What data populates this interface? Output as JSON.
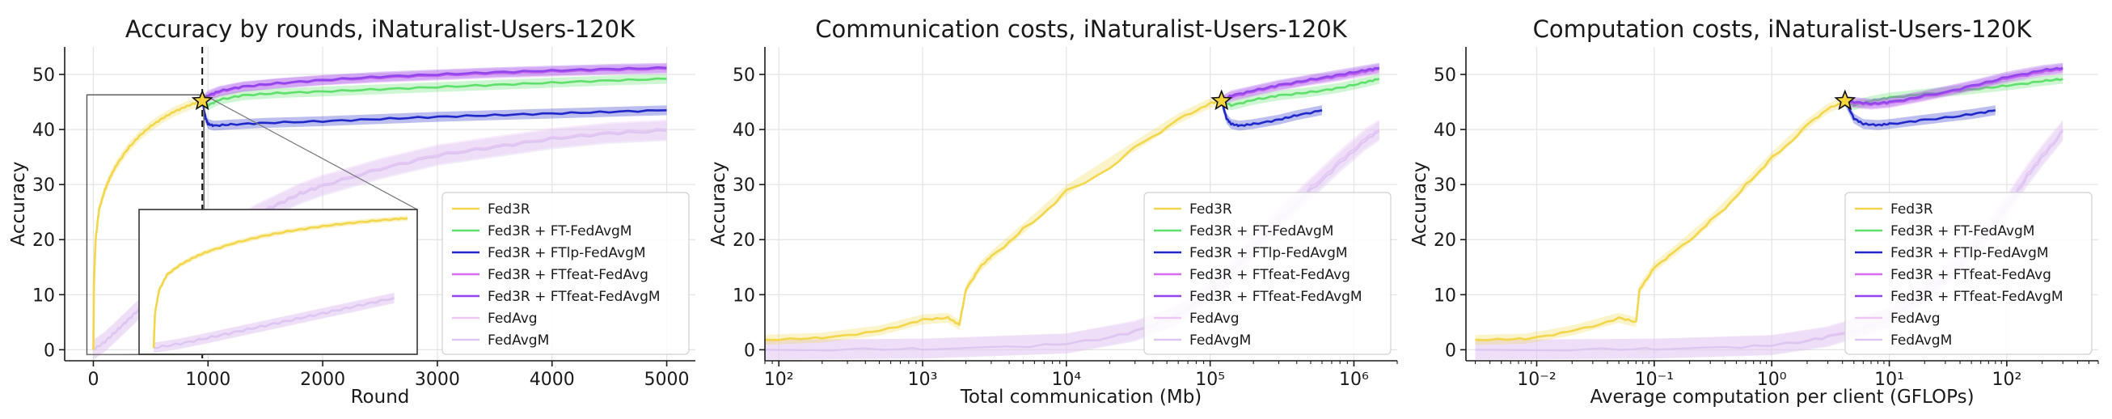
{
  "colors": {
    "Fed3R": "#f2d64b",
    "Fed3R + FT-FedAvgM": "#5ee06a",
    "Fed3R + FTlp-FedAvgM": "#1f29c9",
    "Fed3R + FTfeat-FedAvg": "#d66cf0",
    "Fed3R + FTfeat-FedAvgM": "#9146ec",
    "FedAvg": "#efc7f7",
    "FedAvgM": "#dbc6f2",
    "star": "#f5d43c"
  },
  "chart_data": [
    {
      "type": "line",
      "title": "Accuracy by rounds, iNaturalist-Users-120K",
      "xlabel": "Round",
      "ylabel": "Accuracy",
      "xscale": "linear",
      "xlim": [
        -250,
        5250
      ],
      "ylim": [
        -2,
        55
      ],
      "xticks": [
        0,
        1000,
        2000,
        3000,
        4000,
        5000
      ],
      "xtick_labels": [
        "0",
        "1000",
        "2000",
        "3000",
        "4000",
        "5000"
      ],
      "yticks": [
        0,
        10,
        20,
        30,
        40,
        50
      ],
      "ytick_labels": [
        "0",
        "10",
        "20",
        "30",
        "40",
        "50"
      ],
      "grid": true,
      "legend_position": "lower right",
      "vline_x": 950,
      "star": {
        "x": 950,
        "y": 45.2
      },
      "inset": {
        "xlim": [
          0,
          950
        ],
        "ylim": [
          0,
          46
        ]
      },
      "series": [
        {
          "name": "Fed3R",
          "x": [
            0,
            5,
            20,
            50,
            100,
            150,
            200,
            300,
            400,
            500,
            600,
            700,
            800,
            900,
            950
          ],
          "y": [
            0,
            12,
            20,
            25.5,
            29,
            31.5,
            33.5,
            36.5,
            38.8,
            40.6,
            42,
            43.2,
            44.1,
            44.9,
            45.2
          ]
        },
        {
          "name": "Fed3R + FT-FedAvgM",
          "x": [
            950,
            1000,
            1100,
            1300,
            1600,
            2000,
            2500,
            3000,
            3500,
            4000,
            4500,
            5000
          ],
          "y": [
            45.2,
            44.4,
            45.4,
            46.2,
            46.6,
            46.9,
            47.3,
            47.7,
            48.1,
            48.5,
            48.9,
            49.2
          ]
        },
        {
          "name": "Fed3R + FTlp-FedAvgM",
          "x": [
            950,
            980,
            1000,
            1050,
            1200,
            1500,
            2000,
            2500,
            3000,
            3500,
            4000,
            4500,
            5000
          ],
          "y": [
            45.2,
            42,
            41,
            40.7,
            40.9,
            41.2,
            41.5,
            41.9,
            42.3,
            42.6,
            42.9,
            43.2,
            43.5
          ]
        },
        {
          "name": "Fed3R + FTfeat-FedAvg",
          "x": [
            950,
            1000,
            1100,
            1300,
            1600,
            2000,
            2500,
            3000,
            3500,
            4000,
            4500,
            5000
          ],
          "y": [
            45.2,
            45.9,
            46.8,
            47.7,
            48.3,
            48.9,
            49.4,
            49.8,
            50.2,
            50.5,
            50.8,
            51
          ]
        },
        {
          "name": "Fed3R + FTfeat-FedAvgM",
          "x": [
            950,
            1000,
            1100,
            1300,
            1600,
            2000,
            2500,
            3000,
            3500,
            4000,
            4500,
            5000
          ],
          "y": [
            45.2,
            46.2,
            47,
            47.8,
            48.4,
            49,
            49.6,
            50,
            50.4,
            50.7,
            51,
            51.2
          ]
        },
        {
          "name": "FedAvg",
          "x": [
            0,
            100,
            200,
            300,
            400,
            500,
            600,
            700,
            800,
            900,
            1000,
            1200,
            1400,
            1600,
            1800,
            2000,
            2500,
            3000,
            3500,
            4000,
            4500,
            5000
          ],
          "y": [
            0,
            1.5,
            3.5,
            5.5,
            7.5,
            9.5,
            11.5,
            13.5,
            15.5,
            17.5,
            19.5,
            22,
            24.5,
            26.5,
            28.5,
            30,
            33,
            35.5,
            37,
            38.5,
            39.5,
            40
          ]
        },
        {
          "name": "FedAvgM",
          "x": [
            0,
            100,
            200,
            300,
            400,
            500,
            600,
            700,
            800,
            900,
            1000,
            1200,
            1400,
            1600,
            1800,
            2000,
            2500,
            3000,
            3500,
            4000,
            4500,
            5000
          ],
          "y": [
            0,
            1.4,
            3.3,
            5.3,
            7.3,
            9.3,
            11.3,
            13.3,
            15.3,
            17.3,
            19.3,
            21.8,
            24.2,
            26.2,
            28.2,
            29.7,
            32.7,
            35.2,
            36.7,
            38.2,
            39.2,
            39.7
          ]
        }
      ]
    },
    {
      "type": "line",
      "title": "Communication costs, iNaturalist-Users-120K",
      "xlabel": "Total communication (Mb)",
      "ylabel": "Accuracy",
      "xscale": "log",
      "xlim": [
        80,
        2000000
      ],
      "ylim": [
        -2,
        55
      ],
      "xticks": [
        100,
        1000,
        10000,
        100000,
        1000000
      ],
      "xtick_labels": [
        "10²",
        "10³",
        "10⁴",
        "10⁵",
        "10⁶"
      ],
      "yticks": [
        0,
        10,
        20,
        30,
        40,
        50
      ],
      "ytick_labels": [
        "0",
        "10",
        "20",
        "30",
        "40",
        "50"
      ],
      "grid": true,
      "legend_position": "lower right",
      "star": {
        "x": 120000,
        "y": 45.2
      },
      "series": [
        {
          "name": "Fed3R",
          "x": [
            80,
            200,
            500,
            1000,
            1500,
            1800,
            2000,
            2500,
            3000,
            5000,
            10000,
            30000,
            60000,
            100000,
            120000
          ],
          "y": [
            1.8,
            2.2,
            3.5,
            5.5,
            5.8,
            4.5,
            11,
            15,
            17,
            22,
            29,
            37,
            42,
            44.8,
            45.2
          ]
        },
        {
          "name": "Fed3R + FT-FedAvgM",
          "x": [
            120000,
            140000,
            200000,
            300000,
            500000,
            800000,
            1200000,
            1500000
          ],
          "y": [
            45.2,
            44.4,
            45.4,
            46.2,
            46.8,
            47.6,
            48.6,
            49.2
          ]
        },
        {
          "name": "Fed3R + FTlp-FedAvgM",
          "x": [
            120000,
            130000,
            140000,
            160000,
            200000,
            300000,
            400000,
            600000
          ],
          "y": [
            45.2,
            42,
            41,
            40.7,
            41,
            41.8,
            42.6,
            43.5
          ]
        },
        {
          "name": "Fed3R + FTfeat-FedAvg",
          "x": [
            120000,
            140000,
            200000,
            300000,
            500000,
            800000,
            1200000,
            1500000
          ],
          "y": [
            45.2,
            45.9,
            46.9,
            47.9,
            48.9,
            49.7,
            50.5,
            51
          ]
        },
        {
          "name": "Fed3R + FTfeat-FedAvgM",
          "x": [
            120000,
            140000,
            200000,
            300000,
            500000,
            800000,
            1200000,
            1500000
          ],
          "y": [
            45.2,
            46.2,
            47.1,
            48.1,
            49.1,
            50,
            50.8,
            51.2
          ]
        },
        {
          "name": "FedAvg",
          "x": [
            80,
            1000,
            10000,
            30000,
            60000,
            100000,
            150000,
            200000,
            300000,
            500000,
            800000,
            1200000,
            1500000
          ],
          "y": [
            0,
            0.2,
            1.2,
            3.5,
            6.5,
            11,
            15,
            19,
            24,
            29.5,
            34.5,
            38.5,
            40
          ]
        },
        {
          "name": "FedAvgM",
          "x": [
            80,
            1000,
            10000,
            30000,
            60000,
            100000,
            150000,
            200000,
            300000,
            500000,
            800000,
            1200000,
            1500000
          ],
          "y": [
            0,
            0.2,
            1.1,
            3.3,
            6.2,
            10.5,
            14.5,
            18.5,
            23.5,
            29,
            34,
            38,
            39.7
          ]
        }
      ]
    },
    {
      "type": "line",
      "title": "Computation costs, iNaturalist-Users-120K",
      "xlabel": "Average computation per client (GFLOPs)",
      "ylabel": "Accuracy",
      "xscale": "log",
      "xlim": [
        0.0025,
        600
      ],
      "ylim": [
        -2,
        55
      ],
      "xticks": [
        0.01,
        0.1,
        1,
        10,
        100
      ],
      "xtick_labels": [
        "10⁻²",
        "10⁻¹",
        "10⁰",
        "10¹",
        "10²"
      ],
      "yticks": [
        0,
        10,
        20,
        30,
        40,
        50
      ],
      "ytick_labels": [
        "0",
        "10",
        "20",
        "30",
        "40",
        "50"
      ],
      "grid": true,
      "legend_position": "lower right",
      "star": {
        "x": 4.2,
        "y": 45.2
      },
      "series": [
        {
          "name": "Fed3R",
          "x": [
            0.003,
            0.008,
            0.02,
            0.05,
            0.07,
            0.075,
            0.1,
            0.15,
            0.3,
            0.6,
            1,
            2,
            3,
            4.2
          ],
          "y": [
            1.8,
            2,
            3.5,
            5.8,
            5,
            11,
            15,
            18,
            23.5,
            30,
            35,
            41,
            43.8,
            45.2
          ]
        },
        {
          "name": "Fed3R + FT-FedAvgM",
          "x": [
            4.2,
            5,
            7,
            10,
            20,
            50,
            100,
            200,
            300
          ],
          "y": [
            45.2,
            44.4,
            45.2,
            45.8,
            46.5,
            47.3,
            48,
            48.8,
            49.2
          ]
        },
        {
          "name": "Fed3R + FTlp-FedAvgM",
          "x": [
            4.2,
            5,
            6,
            8,
            10,
            20,
            50,
            80
          ],
          "y": [
            45.2,
            42,
            41,
            40.8,
            41,
            41.8,
            42.8,
            43.5
          ]
        },
        {
          "name": "Fed3R + FTfeat-FedAvg",
          "x": [
            4.2,
            5,
            7,
            10,
            20,
            50,
            100,
            200,
            300
          ],
          "y": [
            45.2,
            44.8,
            44.5,
            44.8,
            46,
            47.8,
            49.3,
            50.5,
            51
          ]
        },
        {
          "name": "Fed3R + FTfeat-FedAvgM",
          "x": [
            4.2,
            5,
            7,
            10,
            20,
            50,
            100,
            200,
            300
          ],
          "y": [
            45.2,
            45,
            44.7,
            45,
            46.2,
            48,
            49.6,
            50.8,
            51.2
          ]
        },
        {
          "name": "FedAvg",
          "x": [
            0.003,
            0.1,
            1,
            3,
            10,
            20,
            40,
            70,
            100,
            150,
            200,
            300
          ],
          "y": [
            0,
            0.2,
            0.9,
            2.5,
            6,
            10.5,
            16,
            22,
            26.5,
            32,
            35.5,
            40
          ]
        },
        {
          "name": "FedAvgM",
          "x": [
            0.003,
            0.1,
            1,
            3,
            10,
            20,
            40,
            70,
            100,
            150,
            200,
            300
          ],
          "y": [
            0,
            0.2,
            0.8,
            2.3,
            5.7,
            10,
            15.5,
            21.5,
            26,
            31.5,
            35,
            39.7
          ]
        }
      ]
    }
  ]
}
